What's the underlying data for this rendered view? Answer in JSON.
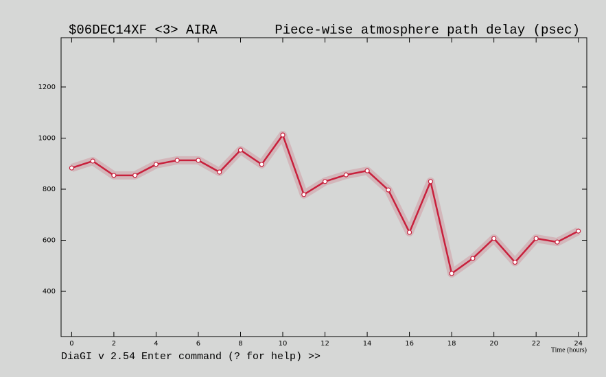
{
  "chart_data": {
    "type": "line",
    "title": "$06DEC14XF <3>  AIRA",
    "subtitle": "Piece-wise atmosphere path delay (psec)",
    "x_label": "Time (hours)",
    "status": "DiaGI v 2.54  Enter command (? for help) >>",
    "x": [
      0,
      1,
      2,
      3,
      4,
      5,
      6,
      7,
      8,
      9,
      10,
      11,
      12,
      13,
      14,
      15,
      16,
      17,
      18,
      19,
      20,
      21,
      22,
      23,
      24
    ],
    "series": [
      {
        "color": "#c8203c",
        "values": [
          883,
          910,
          854,
          854,
          897,
          913,
          913,
          867,
          953,
          897,
          1012,
          779,
          830,
          856,
          872,
          797,
          631,
          830,
          470,
          529,
          607,
          514,
          607,
          593,
          636
        ]
      }
    ],
    "xlim": [
      -0.5,
      24.4
    ],
    "xticks": [
      0,
      2,
      4,
      6,
      8,
      10,
      12,
      14,
      16,
      18,
      20,
      22,
      24
    ],
    "ylim": [
      223,
      1393
    ],
    "yticks": [
      400,
      600,
      800,
      1000,
      1200
    ]
  }
}
